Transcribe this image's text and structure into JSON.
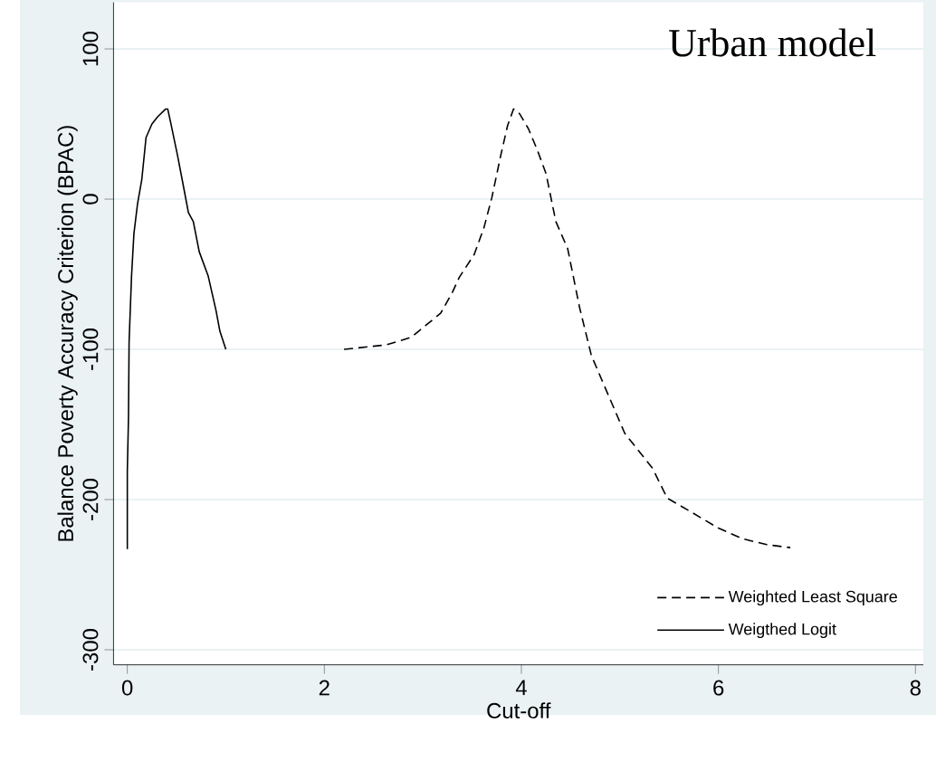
{
  "chart_data": {
    "type": "line",
    "xlabel": "Cut-off",
    "ylabel": "Balance Poverty Accuracy Criterion (BPAC)",
    "annotations": [
      "Urban model"
    ],
    "xlim": [
      -0.14,
      8.08
    ],
    "ylim": [
      -310,
      131
    ],
    "xticks": [
      0,
      2,
      4,
      6,
      8
    ],
    "yticks": [
      -300,
      -200,
      -100,
      0,
      100
    ],
    "grid": "y",
    "legend": "bottom right",
    "series": [
      {
        "name": "Weighted Least Square",
        "color": "#000000",
        "line_style": "dashed",
        "x": [
          2.2,
          2.63,
          2.88,
          3.03,
          3.18,
          3.3,
          3.37,
          3.52,
          3.62,
          3.7,
          3.79,
          3.86,
          3.92,
          3.98,
          4.07,
          4.16,
          4.25,
          4.35,
          4.47,
          4.59,
          4.71,
          4.84,
          5.05,
          5.33,
          5.48,
          5.69,
          6.0,
          6.24,
          6.49,
          6.73
        ],
        "values": [
          -100,
          -97,
          -92,
          -84,
          -76,
          -62,
          -52,
          -37,
          -19,
          1,
          29,
          49,
          60,
          57,
          47,
          33,
          17,
          -15,
          -33,
          -72,
          -104,
          -124,
          -156,
          -179,
          -199,
          -207,
          -219,
          -226,
          -230,
          -232
        ]
      },
      {
        "name": "Weigthed Logit",
        "color": "#000000",
        "line_style": "solid",
        "x": [
          0,
          0,
          0.012,
          0.018,
          0.043,
          0.067,
          0.104,
          0.147,
          0.19,
          0.25,
          0.31,
          0.39,
          0.41,
          0.44,
          0.51,
          0.58,
          0.62,
          0.67,
          0.73,
          0.82,
          0.9,
          0.94,
          1.0
        ],
        "values": [
          -233,
          -181,
          -145,
          -95,
          -51,
          -23,
          -3,
          13,
          41,
          50,
          55,
          60,
          60,
          51,
          29,
          5,
          -9,
          -15,
          -35,
          -51,
          -74,
          -88,
          -100
        ]
      }
    ]
  }
}
